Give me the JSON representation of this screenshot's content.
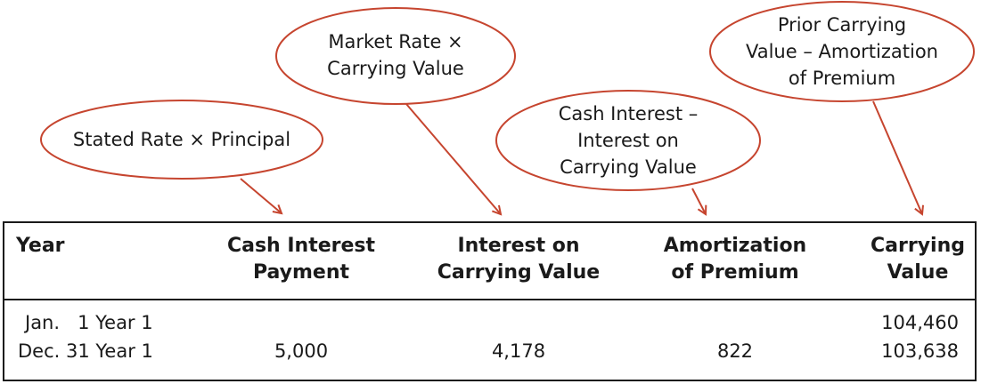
{
  "callouts": [
    {
      "key": "stated",
      "lines": [
        "Stated Rate × Principal"
      ]
    },
    {
      "key": "market",
      "lines": [
        "Market Rate ×",
        "Carrying Value"
      ]
    },
    {
      "key": "cash",
      "lines": [
        "Cash Interest –",
        "Interest on",
        "Carrying Value"
      ]
    },
    {
      "key": "prior",
      "lines": [
        "Prior Carrying",
        "Value – Amortization",
        "of Premium"
      ]
    }
  ],
  "callout_color": "#c6452f",
  "table": {
    "headers": {
      "year": "Year",
      "cash_1": "Cash Interest",
      "cash_2": "Payment",
      "interest_1": "Interest on",
      "interest_2": "Carrying Value",
      "amort_1": "Amortization",
      "amort_2": "of Premium",
      "carry_1": "Carrying",
      "carry_2": "Value"
    },
    "rows": [
      {
        "year": "Jan.   1 Year 1",
        "cash": "",
        "interest": "",
        "amort": "",
        "carrying": "104,460"
      },
      {
        "year": "Dec. 31 Year 1",
        "cash": "5,000",
        "interest": "4,178",
        "amort": "822",
        "carrying": "103,638"
      }
    ]
  }
}
